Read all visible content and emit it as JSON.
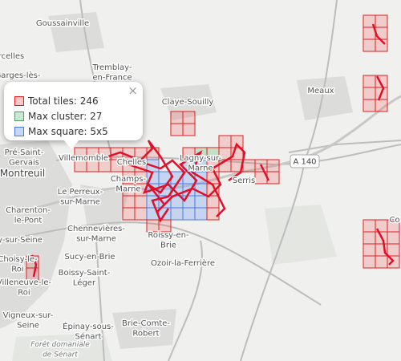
{
  "map": {
    "labels": [
      {
        "lines": [
          "Goussainville"
        ]
      },
      {
        "lines": [
          "rcelles"
        ]
      },
      {
        "lines": [
          "Garges-lès-"
        ]
      },
      {
        "lines": [
          "Tremblay-",
          "en-France"
        ]
      },
      {
        "lines": [
          "Claye-Souilly"
        ]
      },
      {
        "lines": [
          "Meaux"
        ]
      },
      {
        "lines": [
          "Pré-Saint-",
          "Gervais"
        ]
      },
      {
        "lines": [
          "Montreuil"
        ]
      },
      {
        "lines": [
          "Villemomble"
        ]
      },
      {
        "lines": [
          "Chelles"
        ]
      },
      {
        "lines": [
          "Champs-",
          "Marne"
        ]
      },
      {
        "lines": [
          "Lagny-sur-",
          "Marne"
        ]
      },
      {
        "lines": [
          "Serris"
        ]
      },
      {
        "lines": [
          "Le Perreux-",
          "sur-Marne"
        ]
      },
      {
        "lines": [
          "Charenton-",
          "le-Pont"
        ]
      },
      {
        "lines": [
          "Chennevières-",
          "sur-Marne"
        ]
      },
      {
        "lines": [
          "Roissy-en-",
          "Brie"
        ]
      },
      {
        "lines": [
          "y-sur-Seine"
        ]
      },
      {
        "lines": [
          "Sucy-en-Brie"
        ]
      },
      {
        "lines": [
          "Ozoir-la-Ferrière"
        ]
      },
      {
        "lines": [
          "Boissy-Saint-",
          "Léger"
        ]
      },
      {
        "lines": [
          "Choisy-le-",
          "Roi"
        ]
      },
      {
        "lines": [
          "Villeneuve-le-",
          "Roi"
        ]
      },
      {
        "lines": [
          "Vigneux-sur-",
          "Seine"
        ]
      },
      {
        "lines": [
          "Épinay-sous-",
          "Sénart"
        ]
      },
      {
        "lines": [
          "Brie-Comte-",
          "Robert"
        ]
      },
      {
        "lines": [
          "Forêt domaniale",
          "de Sénart"
        ]
      },
      {
        "lines": [
          "Co"
        ]
      }
    ],
    "road_shield": "A 140"
  },
  "popup": {
    "items": [
      "Total tiles: 246",
      "Max cluster: 27",
      "Max square: 5x5"
    ],
    "close": "×"
  }
}
